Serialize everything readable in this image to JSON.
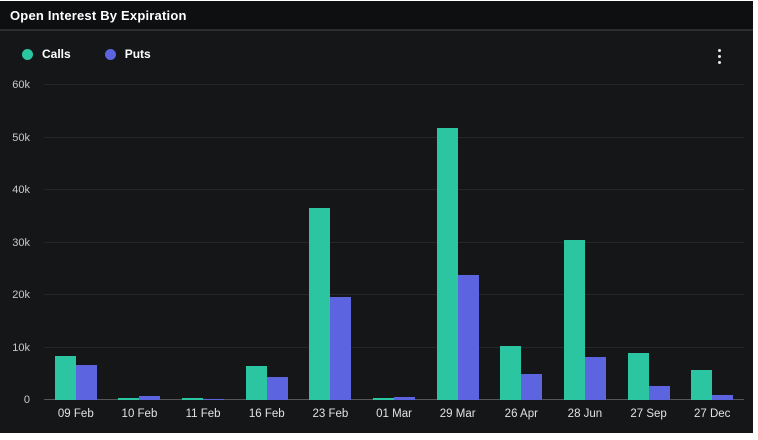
{
  "header": {
    "title": "Open Interest By Expiration"
  },
  "icons": {
    "kebab_menu": "vertical-three-dots"
  },
  "legend": {
    "items": [
      {
        "label": "Calls",
        "color": "#2bc5a2"
      },
      {
        "label": "Puts",
        "color": "#5d64e0"
      }
    ]
  },
  "colors": {
    "page_background": "#ffffff",
    "widget_background": "#141617",
    "titlebar_background": "#0e0f10",
    "calls": "#2bc5a2",
    "puts": "#5d64e0",
    "grid": "rgba(255,255,255,0.07)",
    "axis_line": "#53575a",
    "tick_text": "#c9c9c9",
    "category_text": "#e2e2e2",
    "title_text": "#ffffff"
  },
  "chart_data": {
    "type": "bar",
    "title": "Open Interest By Expiration",
    "categories": [
      "09 Feb",
      "10 Feb",
      "11 Feb",
      "16 Feb",
      "23 Feb",
      "01 Mar",
      "29 Mar",
      "26 Apr",
      "28 Jun",
      "27 Sep",
      "27 Dec"
    ],
    "series": [
      {
        "name": "Calls",
        "color": "#2bc5a2",
        "values": [
          8300,
          400,
          300,
          6500,
          36500,
          400,
          51800,
          10300,
          30500,
          9000,
          5800
        ]
      },
      {
        "name": "Puts",
        "color": "#5d64e0",
        "values": [
          6700,
          700,
          100,
          4300,
          19700,
          500,
          23800,
          5000,
          8200,
          2700,
          900
        ]
      }
    ],
    "ylim": [
      0,
      60000
    ],
    "yticks": [
      {
        "value": 0,
        "label": "0"
      },
      {
        "value": 10000,
        "label": "10k"
      },
      {
        "value": 20000,
        "label": "20k"
      },
      {
        "value": 30000,
        "label": "30k"
      },
      {
        "value": 40000,
        "label": "40k"
      },
      {
        "value": 50000,
        "label": "50k"
      },
      {
        "value": 60000,
        "label": "60k"
      }
    ],
    "grid": true,
    "legend_position": "top-left",
    "xlabel": "",
    "ylabel": ""
  }
}
